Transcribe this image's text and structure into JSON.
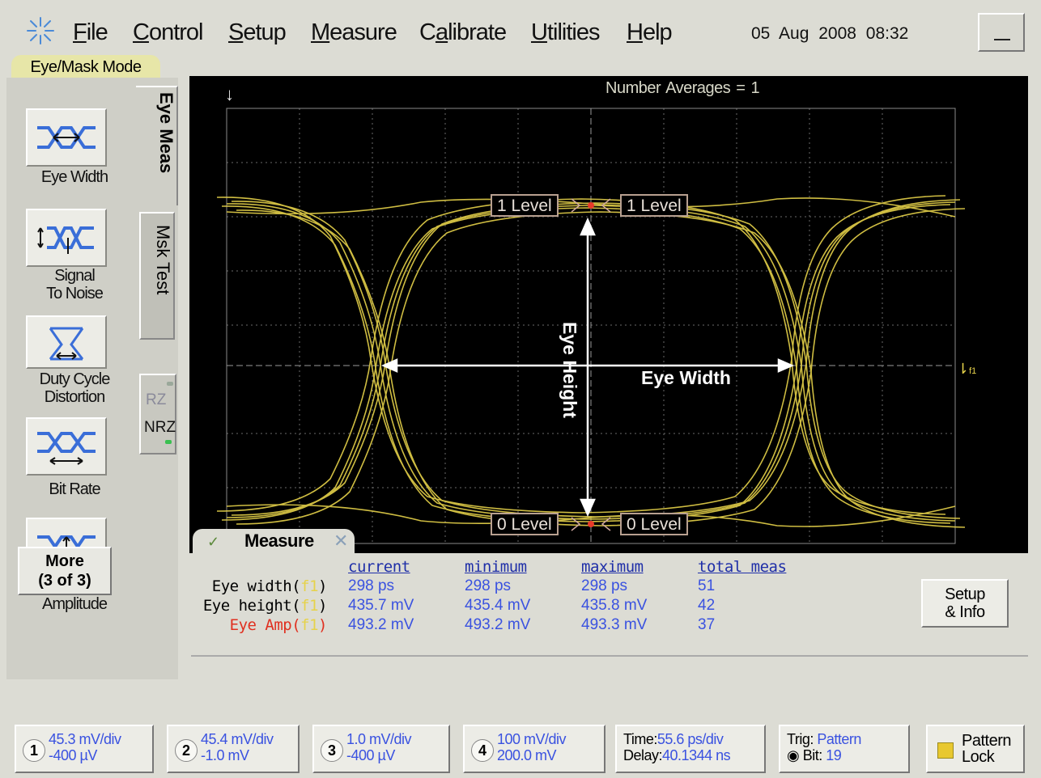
{
  "menu": {
    "items": [
      {
        "label": "File",
        "underline": "F",
        "rest": "ile"
      },
      {
        "label": "Control",
        "underline": "C",
        "rest": "ontrol"
      },
      {
        "label": "Setup",
        "underline": "S",
        "rest": "etup"
      },
      {
        "label": "Measure",
        "underline": "M",
        "rest": "easure"
      },
      {
        "label": "Calibrate",
        "underline_prefix": "C",
        "underline": "a",
        "rest": "librate"
      },
      {
        "label": "Utilities",
        "underline": "U",
        "rest": "tilities"
      },
      {
        "label": "Help",
        "underline": "H",
        "rest": "elp"
      }
    ],
    "datetime": "05 Aug 2008  08:32"
  },
  "mode_tab": "Eye/Mask Mode",
  "left_panel": {
    "buttons": [
      {
        "label": "Eye Width",
        "icon": "eye-width-icon"
      },
      {
        "label": "Signal\nTo Noise",
        "icon": "signal-to-noise-icon"
      },
      {
        "label": "Duty Cycle\nDistortion",
        "icon": "duty-cycle-icon"
      },
      {
        "label": "Bit Rate",
        "icon": "bit-rate-icon"
      },
      {
        "label": "Eye\nAmplitude",
        "icon": "eye-amplitude-icon"
      }
    ],
    "more_line1": "More",
    "more_line2": "(3 of 3)",
    "tab_active": "Eye Meas",
    "tab_inactive": "Msk Test",
    "rz": "RZ",
    "nrz": "NRZ"
  },
  "screen": {
    "number_averages": "Number Averages =   1",
    "level_labels": {
      "one_left": "1 Level",
      "one_right": "1 Level",
      "zero_left": "0 Level",
      "zero_right": "0 Level"
    },
    "eye_height_label": "Eye Height",
    "eye_width_label": "Eye Width",
    "channel_marker": "f1",
    "trace_color": "#e6d24a"
  },
  "measure": {
    "title": "Measure",
    "columns": [
      "current",
      "minimum",
      "maximum",
      "total meas"
    ],
    "rows": [
      {
        "name": "Eye width(",
        "ch": "f1",
        "close": ")",
        "name_color": "#000000",
        "current": "298 ps",
        "minimum": "298 ps",
        "maximum": "298 ps",
        "total": "51"
      },
      {
        "name": "Eye height(",
        "ch": "f1",
        "close": ")",
        "name_color": "#000000",
        "current": "435.7 mV",
        "minimum": "435.4 mV",
        "maximum": "435.8 mV",
        "total": "42"
      },
      {
        "name": "Eye Amp(",
        "ch": "f1",
        "close": ")",
        "name_color": "#e03020",
        "current": "493.2 mV",
        "minimum": "493.2 mV",
        "maximum": "493.3 mV",
        "total": "37"
      }
    ],
    "setup_line1": "Setup",
    "setup_line2": "& Info"
  },
  "bottom": {
    "channels": [
      {
        "num": "1",
        "line1": "45.3 mV/div",
        "line2": "-400 µV"
      },
      {
        "num": "2",
        "line1": "45.4 mV/div",
        "line2": "-1.0 mV"
      },
      {
        "num": "3",
        "line1": "1.0 mV/div",
        "line2": "-400 µV"
      },
      {
        "num": "4",
        "line1": "100 mV/div",
        "line2": "200.0 mV"
      }
    ],
    "time_label": "Time:",
    "time_value": "55.6 ps/div",
    "delay_label": "Delay:",
    "delay_value": "40.1344 ns",
    "trig_label": "Trig: ",
    "trig_value": "Pattern",
    "bit_label": "Bit: ",
    "bit_value": "19",
    "pattern_lock_line1": "Pattern",
    "pattern_lock_line2": "Lock"
  }
}
